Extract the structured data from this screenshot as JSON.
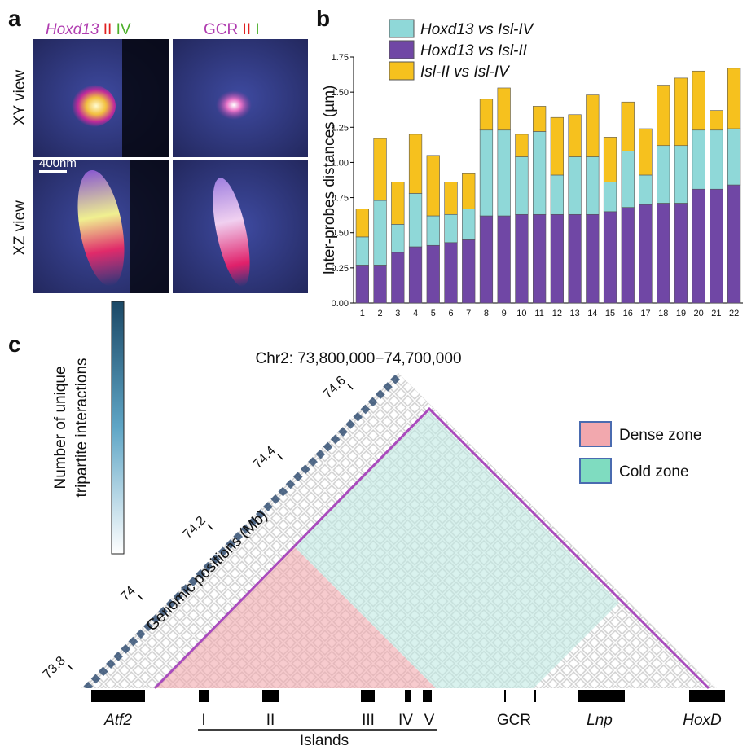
{
  "chart_data": {
    "type": "stacked_bar",
    "ylabel": "Inter-probes distances (µm)",
    "categories": [
      "1",
      "2",
      "3",
      "4",
      "5",
      "6",
      "7",
      "8",
      "9",
      "10",
      "11",
      "12",
      "13",
      "14",
      "15",
      "16",
      "17",
      "18",
      "19",
      "20",
      "21",
      "22"
    ],
    "series": [
      {
        "name": "Hoxd13 vs Isl-IV",
        "color": "#8fd8d8",
        "values": [
          0.2,
          0.46,
          0.2,
          0.38,
          0.21,
          0.2,
          0.22,
          0.61,
          0.61,
          0.41,
          0.59,
          0.28,
          0.41,
          0.41,
          0.21,
          0.4,
          0.21,
          0.41,
          0.41,
          0.42,
          0.42,
          0.4
        ]
      },
      {
        "name": "Hoxd13 vs Isl-II",
        "color": "#7047a5",
        "values": [
          0.27,
          0.27,
          0.36,
          0.4,
          0.41,
          0.43,
          0.45,
          0.62,
          0.62,
          0.63,
          0.63,
          0.63,
          0.63,
          0.63,
          0.65,
          0.68,
          0.7,
          0.71,
          0.71,
          0.81,
          0.81,
          0.84
        ]
      },
      {
        "name": "Isl-II vs Isl-IV",
        "color": "#f6c11e",
        "values": [
          0.2,
          0.44,
          0.3,
          0.42,
          0.43,
          0.23,
          0.25,
          0.22,
          0.3,
          0.16,
          0.18,
          0.41,
          0.3,
          0.44,
          0.32,
          0.35,
          0.33,
          0.43,
          0.48,
          0.42,
          0.14,
          0.43
        ]
      }
    ],
    "ylim": [
      0,
      1.75
    ],
    "yticks": [
      {
        "value": 0,
        "label": "0.00"
      },
      {
        "value": 0.25,
        "label": "0.25"
      },
      {
        "value": 0.5,
        "label": "0.50"
      },
      {
        "value": 0.75,
        "label": "0.75"
      },
      {
        "value": 1,
        "label": "1.00"
      },
      {
        "value": 1.25,
        "label": "1.25"
      },
      {
        "value": 1.5,
        "label": "1.50"
      },
      {
        "value": 1.75,
        "label": "1.75"
      }
    ]
  },
  "panel_labels": [
    "a",
    "b",
    "c"
  ],
  "panel_a": {
    "columns": [
      [
        "Hoxd13",
        "II",
        "IV"
      ],
      [
        "GCR",
        "II",
        "I"
      ]
    ],
    "rows": [
      "XY view",
      "XZ view"
    ],
    "scale": "400nm"
  },
  "panel_c": {
    "title": "Chr2: 73,800,000−74,700,000",
    "colorbar": [
      "Number of unique",
      "tripartite interactions"
    ],
    "axis_label": "Genomic positions (Mb)",
    "positions": [
      73.8,
      74,
      74.2,
      74.4,
      74.6
    ],
    "zones": [
      "Dense zone",
      "Cold zone"
    ],
    "genes": [
      "Atf2",
      "I",
      "II",
      "III",
      "IV",
      "V",
      "GCR",
      "Lnp",
      "HoxD"
    ],
    "group": "Islands"
  }
}
